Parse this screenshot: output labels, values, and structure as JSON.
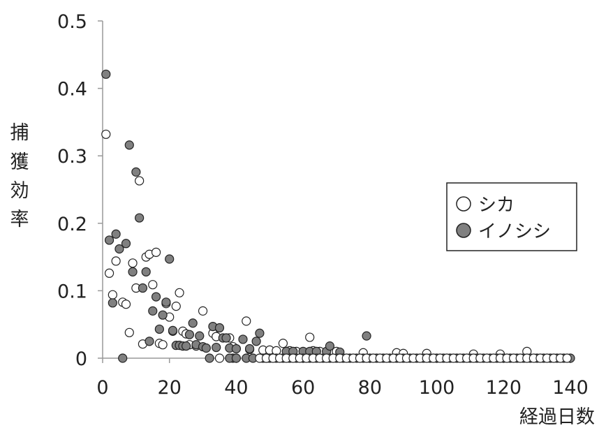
{
  "chart_data": {
    "type": "scatter",
    "xlabel": "経過日数",
    "ylabel": "捕獲効率",
    "xlim": [
      0,
      140
    ],
    "ylim": [
      0,
      0.5
    ],
    "x_ticks": [
      "0",
      "20",
      "40",
      "60",
      "80",
      "100",
      "120",
      "140"
    ],
    "y_ticks": [
      "0",
      "0.1",
      "0.2",
      "0.3",
      "0.4",
      "0.5"
    ],
    "grid": false,
    "legend_position": "right",
    "colors": {
      "shika": "#ffffff",
      "inoshishi": "#808080",
      "axis": "#999999",
      "text": "#222222"
    },
    "series": [
      {
        "name": "シカ",
        "marker": "open-circle",
        "x": [
          1,
          2,
          3,
          4,
          6,
          7,
          8,
          9,
          10,
          11,
          12,
          13,
          14,
          15,
          16,
          17,
          18,
          19,
          20,
          21,
          22,
          23,
          24,
          25,
          26,
          28,
          30,
          33,
          34,
          35,
          38,
          39,
          43,
          44,
          48,
          50,
          52,
          54,
          56,
          58,
          62,
          63,
          65,
          70,
          78,
          88,
          90,
          97,
          111,
          119,
          127
        ],
        "y": [
          0.332,
          0.126,
          0.094,
          0.144,
          0.083,
          0.08,
          0.038,
          0.141,
          0.104,
          0.263,
          0.021,
          0.15,
          0.154,
          0.109,
          0.157,
          0.022,
          0.02,
          0.081,
          0.061,
          0.04,
          0.077,
          0.097,
          0.04,
          0.036,
          0.02,
          0.018,
          0.07,
          0.037,
          0.032,
          0.0,
          0.03,
          0.017,
          0.055,
          0.013,
          0.012,
          0.012,
          0.011,
          0.022,
          0.011,
          0.01,
          0.031,
          0.011,
          0.01,
          0.01,
          0.008,
          0.008,
          0.007,
          0.007,
          0.006,
          0.006,
          0.01
        ]
      },
      {
        "name": "イノシシ",
        "marker": "filled-circle",
        "x": [
          1,
          2,
          3,
          4,
          5,
          6,
          7,
          8,
          9,
          10,
          11,
          12,
          13,
          14,
          15,
          16,
          17,
          18,
          19,
          20,
          21,
          22,
          23,
          24,
          25,
          26,
          27,
          28,
          29,
          30,
          31,
          32,
          33,
          34,
          35,
          36,
          37,
          38,
          39,
          40,
          42,
          44,
          46,
          47,
          49,
          55,
          57,
          60,
          62,
          64,
          67,
          68,
          71,
          79
        ],
        "y": [
          0.421,
          0.175,
          0.082,
          0.184,
          0.162,
          0.0,
          0.17,
          0.316,
          0.128,
          0.276,
          0.208,
          0.104,
          0.128,
          0.025,
          0.07,
          0.091,
          0.043,
          0.064,
          0.083,
          0.147,
          0.041,
          0.019,
          0.019,
          0.018,
          0.018,
          0.035,
          0.052,
          0.02,
          0.033,
          0.017,
          0.015,
          0.0,
          0.047,
          0.016,
          0.045,
          0.03,
          0.03,
          0.015,
          0.0,
          0.014,
          0.028,
          0.014,
          0.025,
          0.037,
          0.0,
          0.01,
          0.01,
          0.01,
          0.01,
          0.01,
          0.01,
          0.018,
          0.009,
          0.033
        ]
      },
      {
        "name": "",
        "marker": "filled-circle",
        "x": [
          38,
          40,
          43,
          45,
          48,
          50,
          52,
          54,
          56,
          58,
          60,
          62,
          64,
          66,
          68,
          70,
          72,
          74,
          76,
          78,
          80,
          82,
          84,
          86,
          88,
          90,
          92,
          94,
          96,
          98,
          100,
          102,
          104,
          106,
          108,
          110,
          112,
          114,
          116,
          118,
          120,
          122,
          124,
          126,
          128,
          130,
          132,
          134,
          136,
          138,
          140
        ],
        "y": [
          0,
          0,
          0,
          0,
          0,
          0,
          0,
          0,
          0,
          0,
          0,
          0,
          0,
          0,
          0,
          0,
          0,
          0,
          0,
          0,
          0,
          0,
          0,
          0,
          0,
          0,
          0,
          0,
          0,
          0,
          0,
          0,
          0,
          0,
          0,
          0,
          0,
          0,
          0,
          0,
          0,
          0,
          0,
          0,
          0,
          0,
          0,
          0,
          0,
          0,
          0
        ]
      },
      {
        "name": "",
        "marker": "open-circle",
        "x": [
          47,
          49,
          51,
          53,
          55,
          57,
          59,
          61,
          63,
          65,
          67,
          69,
          71,
          73,
          75,
          77,
          79,
          81,
          83,
          85,
          87,
          89,
          91,
          93,
          95,
          97,
          99,
          101,
          103,
          105,
          107,
          109,
          111,
          113,
          115,
          117,
          119,
          121,
          123,
          125,
          127,
          129,
          131,
          133,
          135,
          137,
          139
        ],
        "y": [
          0,
          0,
          0,
          0,
          0,
          0,
          0,
          0,
          0,
          0,
          0,
          0,
          0,
          0,
          0,
          0,
          0,
          0,
          0,
          0,
          0,
          0,
          0,
          0,
          0,
          0,
          0,
          0,
          0,
          0,
          0,
          0,
          0,
          0,
          0,
          0,
          0,
          0,
          0,
          0,
          0,
          0,
          0,
          0,
          0,
          0,
          0
        ]
      }
    ]
  }
}
